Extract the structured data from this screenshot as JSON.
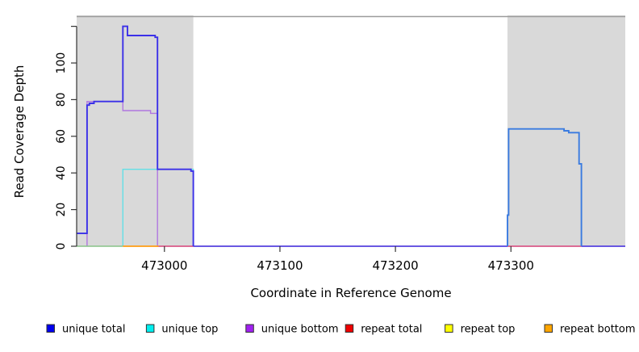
{
  "chart_data": {
    "type": "line",
    "title": "",
    "xlabel": "Coordinate in Reference Genome",
    "ylabel": "Read Coverage Depth",
    "xlim": [
      472924,
      473399
    ],
    "ylim": [
      0,
      126
    ],
    "grid": false,
    "legend_position": "bottom",
    "x_ticks": [
      {
        "value": 473000,
        "label": "473000"
      },
      {
        "value": 473100,
        "label": "473100"
      },
      {
        "value": 473200,
        "label": "473200"
      },
      {
        "value": 473300,
        "label": "473300"
      }
    ],
    "y_ticks": [
      {
        "value": 0,
        "label": "0"
      },
      {
        "value": 20,
        "label": "20"
      },
      {
        "value": 40,
        "label": "40"
      },
      {
        "value": 60,
        "label": "60"
      },
      {
        "value": 80,
        "label": "80"
      },
      {
        "value": 100,
        "label": "100"
      },
      {
        "value": 120,
        "label": ""
      }
    ],
    "shaded_regions": [
      {
        "name": "repeat-region-left",
        "x0": 472924,
        "x1": 473025,
        "color": "#d9d9d9"
      },
      {
        "name": "repeat-region-right",
        "x0": 473297,
        "x1": 473399,
        "color": "#d9d9d9"
      }
    ],
    "top_border_color": "#9c9c9c",
    "axis_color": "#333333",
    "series": [
      {
        "name": "unique top",
        "color": "#63dfe6",
        "width": 1.4,
        "points": [
          [
            472964,
            0
          ],
          [
            472964,
            42
          ],
          [
            473025,
            42
          ],
          [
            473025,
            0
          ]
        ]
      },
      {
        "name": "unique bottom",
        "color": "#b077e0",
        "width": 1.4,
        "points": [
          [
            472933,
            0
          ],
          [
            472933,
            79
          ],
          [
            472964,
            79
          ],
          [
            472964,
            74
          ],
          [
            472988,
            74
          ],
          [
            472988,
            72.5
          ],
          [
            472994,
            72.5
          ],
          [
            472994,
            0
          ],
          [
            473399,
            0
          ]
        ]
      },
      {
        "name": "baseline green",
        "color": "#88c488",
        "width": 1.6,
        "points": [
          [
            472924,
            0
          ],
          [
            472964,
            0
          ]
        ]
      },
      {
        "name": "baseline orange",
        "color": "#ff9d14",
        "width": 1.8,
        "points": [
          [
            472964,
            0
          ],
          [
            472995,
            0
          ]
        ]
      },
      {
        "name": "baseline crimson left",
        "color": "#e0557a",
        "width": 1.6,
        "points": [
          [
            472995,
            0
          ],
          [
            473025,
            0
          ]
        ]
      },
      {
        "name": "baseline indigo",
        "color": "#5b4be0",
        "width": 1.8,
        "points": [
          [
            473025,
            0
          ],
          [
            473297,
            0
          ]
        ]
      },
      {
        "name": "baseline crimson right",
        "color": "#e0557a",
        "width": 1.6,
        "points": [
          [
            473297,
            0
          ],
          [
            473361,
            0
          ]
        ]
      },
      {
        "name": "baseline violet",
        "color": "#5b4be0",
        "width": 1.8,
        "points": [
          [
            473361,
            0
          ],
          [
            473399,
            0
          ]
        ]
      },
      {
        "name": "unique total left",
        "color": "#3b30e8",
        "width": 1.9,
        "points": [
          [
            472924,
            7
          ],
          [
            472933,
            7
          ],
          [
            472933,
            77
          ],
          [
            472935,
            77
          ],
          [
            472935,
            78
          ],
          [
            472939,
            78
          ],
          [
            472939,
            79
          ],
          [
            472964,
            79
          ],
          [
            472964,
            120
          ],
          [
            472968,
            120
          ],
          [
            472968,
            115
          ],
          [
            472992,
            115
          ],
          [
            472992,
            114
          ],
          [
            472994,
            114
          ],
          [
            472994,
            42
          ],
          [
            473023,
            42
          ],
          [
            473023,
            41
          ],
          [
            473025,
            41
          ],
          [
            473025,
            0
          ]
        ]
      },
      {
        "name": "unique total right",
        "color": "#3a7be0",
        "width": 1.9,
        "points": [
          [
            473297,
            0
          ],
          [
            473297,
            17
          ],
          [
            473298,
            17
          ],
          [
            473298,
            64
          ],
          [
            473346,
            64
          ],
          [
            473346,
            63
          ],
          [
            473350,
            63
          ],
          [
            473350,
            62
          ],
          [
            473359,
            62
          ],
          [
            473359,
            45
          ],
          [
            473361,
            45
          ],
          [
            473361,
            0
          ]
        ]
      }
    ],
    "legend": [
      {
        "label": "unique total",
        "color": "#0000EE"
      },
      {
        "label": "unique top",
        "color": "#00EEEE"
      },
      {
        "label": "unique bottom",
        "color": "#A020F0"
      },
      {
        "label": "repeat total",
        "color": "#EE0000"
      },
      {
        "label": "repeat top",
        "color": "#FFFF00"
      },
      {
        "label": "repeat bottom",
        "color": "#FFA500"
      }
    ]
  }
}
